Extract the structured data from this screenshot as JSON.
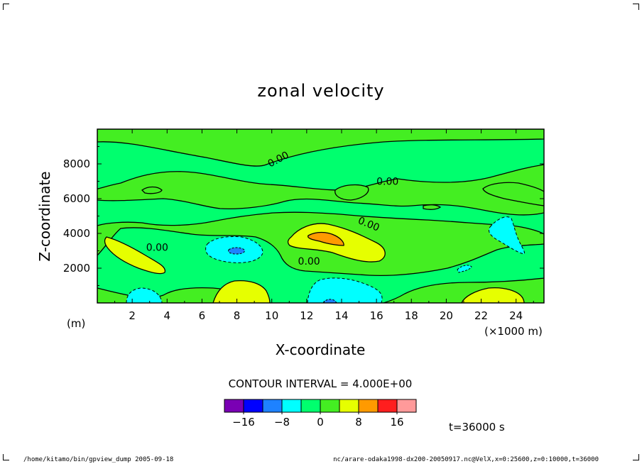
{
  "title": "zonal velocity",
  "chart_data": {
    "type": "heatmap",
    "title": "zonal velocity",
    "xlabel": "X-coordinate",
    "ylabel": "Z-coordinate",
    "x_unit": "(×1000 m)",
    "y_unit": "(m)",
    "xlim": [
      0,
      25.6
    ],
    "ylim": [
      0,
      10000
    ],
    "x_ticks": [
      2,
      4,
      6,
      8,
      10,
      12,
      14,
      16,
      18,
      20,
      22,
      24
    ],
    "y_ticks": [
      2000,
      4000,
      6000,
      8000
    ],
    "contour_labels": [
      "0.00",
      "0.00",
      "0.00",
      "0.00",
      "0.00"
    ],
    "contour_interval_text": "CONTOUR INTERVAL = 4.000E+00",
    "colorbar": {
      "levels": [
        -20,
        -16,
        -12,
        -8,
        -4,
        0,
        4,
        8,
        12,
        16,
        20
      ],
      "tick_labels": [
        "-16",
        "-8",
        "0",
        "8",
        "16"
      ],
      "colors": [
        "#7a00b4",
        "#0000ff",
        "#1e82ff",
        "#00ffff",
        "#00ff6e",
        "#44ee22",
        "#e6ff00",
        "#ff9a00",
        "#ff1e1e",
        "#ff9a9a"
      ]
    },
    "time_text": "t=36000 s",
    "features": [
      {
        "kind": "positive_max",
        "x": 13,
        "z": 3800,
        "value_range": "8 to 12"
      },
      {
        "kind": "positive",
        "x": 14,
        "z": 3400,
        "value_range": "4 to 8"
      },
      {
        "kind": "positive",
        "x": 3,
        "z": 3000,
        "value_range": "4 to 8"
      },
      {
        "kind": "positive",
        "x": 8.5,
        "z": 700,
        "value_range": "4 to 8"
      },
      {
        "kind": "positive",
        "x": 23,
        "z": 500,
        "value_range": "4 to 8"
      },
      {
        "kind": "negative",
        "x": 8,
        "z": 3100,
        "value_range": "-8 to -4"
      },
      {
        "kind": "negative",
        "x": 13,
        "z": 700,
        "value_range": "-8 to -4"
      },
      {
        "kind": "negative",
        "x": 23.5,
        "z": 4000,
        "value_range": "-8 to -4"
      },
      {
        "kind": "negative",
        "x": 2.5,
        "z": 500,
        "value_range": "-8 to -4"
      }
    ]
  },
  "footer": {
    "left": "/home/kitamo/bin/gpview_dump   2005-09-18",
    "right": "nc/arare-odaka1998-dx200-20050917.nc@VelX,x=0:25600,z=0:10000,t=36000"
  }
}
